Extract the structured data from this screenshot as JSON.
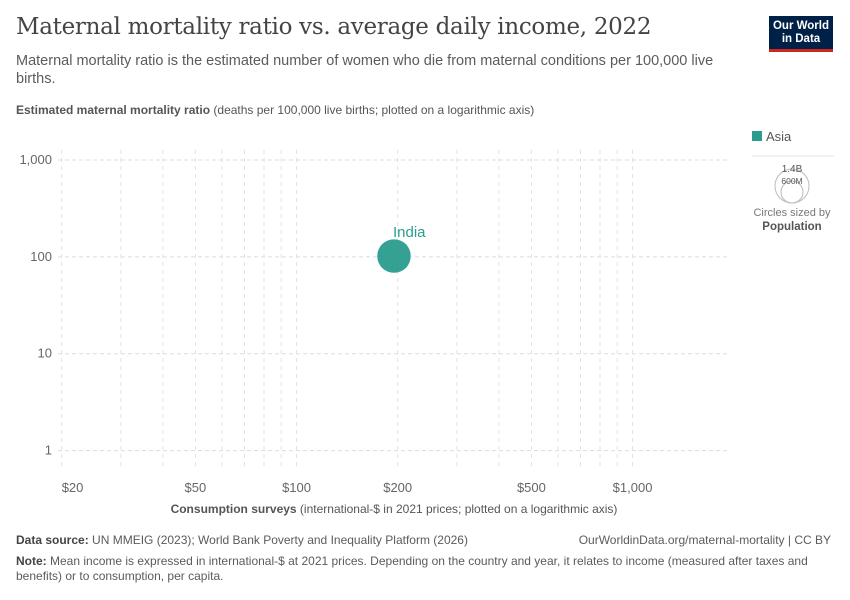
{
  "header": {
    "title": "Maternal mortality ratio vs. average daily income, 2022",
    "subtitle": "Maternal mortality ratio is the estimated number of women who die from maternal conditions per 100,000 live births.",
    "logo_line1": "Our World",
    "logo_line2": "in Data"
  },
  "chart_data": {
    "type": "scatter",
    "title": "Maternal mortality ratio vs. average daily income, 2022",
    "ylabel_bold": "Estimated maternal mortality ratio",
    "ylabel_rest": " (deaths per 100,000 live births; plotted on a logarithmic axis)",
    "xlabel_bold": "Consumption surveys",
    "xlabel_rest": " (international-$ in 2021 prices; plotted on a logarithmic axis)",
    "x_scale": "log",
    "y_scale": "log",
    "xlim": [
      19.5,
      1950
    ],
    "ylim": [
      0.63,
      1270
    ],
    "x_ticks": [
      {
        "v": 20,
        "label": "$20"
      },
      {
        "v": 50,
        "label": "$50"
      },
      {
        "v": 100,
        "label": "$100"
      },
      {
        "v": 200,
        "label": "$200"
      },
      {
        "v": 500,
        "label": "$500"
      },
      {
        "v": 1000,
        "label": "$1,000"
      }
    ],
    "y_ticks": [
      {
        "v": 1,
        "label": "1"
      },
      {
        "v": 10,
        "label": "10"
      },
      {
        "v": 100,
        "label": "100"
      },
      {
        "v": 1000,
        "label": "1,000"
      }
    ],
    "grid": true,
    "points": [
      {
        "label": "India",
        "x": 195,
        "y": 102,
        "region": "Asia",
        "population_billion": 1.4
      }
    ],
    "legend": {
      "placement": "right",
      "items": [
        {
          "name": "Asia",
          "color": "#2a9d8f"
        }
      ]
    },
    "size_legend": {
      "large": "1.4B",
      "small": "600M",
      "caption": "Circles sized by",
      "variable": "Population"
    }
  },
  "footer": {
    "source_label": "Data source:",
    "source": " UN MMEIG (2023); World Bank Poverty and Inequality Platform (2026)",
    "url": "OurWorldinData.org/maternal-mortality | CC BY",
    "note_label": "Note:",
    "note": " Mean income is expressed in international-$ at 2021 prices. Depending on the country and year, it relates to income (measured after taxes and benefits) or to consumption, per capita."
  }
}
